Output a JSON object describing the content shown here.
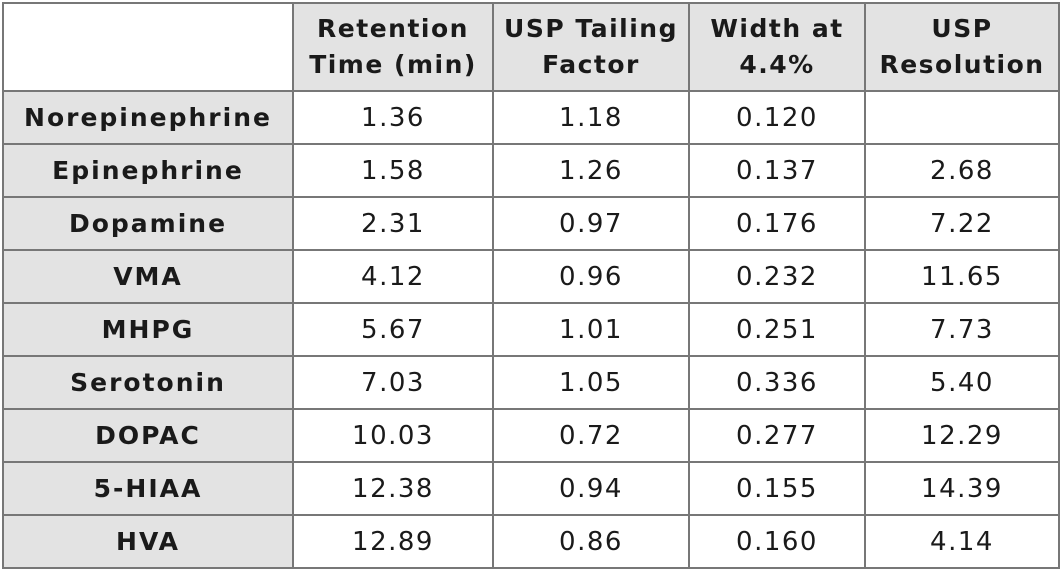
{
  "table": {
    "headers": [
      [
        "Retention",
        "Time (min)"
      ],
      [
        "USP Tailing",
        "Factor"
      ],
      [
        "Width at",
        "4.4%"
      ],
      [
        "USP",
        "Resolution"
      ]
    ],
    "rows": [
      {
        "name": "Norepinephrine",
        "cells": [
          "1.36",
          "1.18",
          "0.120",
          ""
        ]
      },
      {
        "name": "Epinephrine",
        "cells": [
          "1.58",
          "1.26",
          "0.137",
          "2.68"
        ]
      },
      {
        "name": "Dopamine",
        "cells": [
          "2.31",
          "0.97",
          "0.176",
          "7.22"
        ]
      },
      {
        "name": "VMA",
        "cells": [
          "4.12",
          "0.96",
          "0.232",
          "11.65"
        ]
      },
      {
        "name": "MHPG",
        "cells": [
          "5.67",
          "1.01",
          "0.251",
          "7.73"
        ]
      },
      {
        "name": "Serotonin",
        "cells": [
          "7.03",
          "1.05",
          "0.336",
          "5.40"
        ]
      },
      {
        "name": "DOPAC",
        "cells": [
          "10.03",
          "0.72",
          "0.277",
          "12.29"
        ]
      },
      {
        "name": "5-HIAA",
        "cells": [
          "12.38",
          "0.94",
          "0.155",
          "14.39"
        ]
      },
      {
        "name": "HVA",
        "cells": [
          "12.89",
          "0.86",
          "0.160",
          "4.14"
        ]
      }
    ]
  }
}
